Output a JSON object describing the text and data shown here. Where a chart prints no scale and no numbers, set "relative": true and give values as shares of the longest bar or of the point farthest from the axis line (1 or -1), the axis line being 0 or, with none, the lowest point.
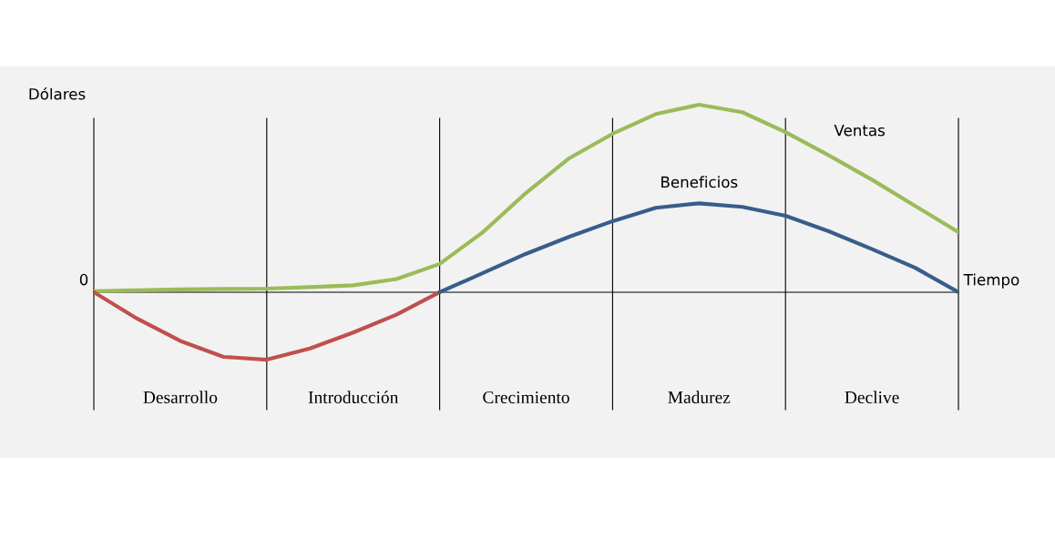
{
  "chart_data": {
    "type": "line",
    "relative": true,
    "ylabel": "Dólares",
    "xlabel": "Tiempo",
    "annotations": [
      "0"
    ],
    "categories": [
      null,
      null,
      "Desarrollo",
      null,
      null,
      null,
      "Introducción",
      null,
      null,
      null,
      "Crecimiento",
      null,
      null,
      null,
      "Madurez",
      null,
      null,
      null,
      "Declive",
      null,
      null
    ],
    "series": [
      {
        "name": "Ventas",
        "color": "#9bbb59",
        "values": [
          0.005,
          0.01,
          0.015,
          0.017,
          0.019,
          0.027,
          0.037,
          0.07,
          0.151,
          0.32,
          0.53,
          0.715,
          0.845,
          0.95,
          1,
          0.96,
          0.854,
          0.73,
          0.6,
          0.46,
          0.32
        ]
      },
      {
        "color": "#c0504d",
        "values": [
          0,
          -0.141,
          -0.26,
          -0.345,
          -0.36,
          -0.3,
          -0.215,
          -0.12,
          0,
          null,
          null,
          null,
          null,
          null,
          null,
          null,
          null,
          null,
          null,
          null,
          null
        ]
      },
      {
        "name": "Beneficios",
        "color": "#385d8a",
        "values": [
          null,
          null,
          null,
          null,
          null,
          null,
          null,
          null,
          0,
          0.102,
          0.205,
          0.296,
          0.379,
          0.45,
          0.474,
          0.455,
          0.408,
          0.325,
          0.23,
          0.13,
          0
        ]
      }
    ],
    "grid": "x"
  }
}
